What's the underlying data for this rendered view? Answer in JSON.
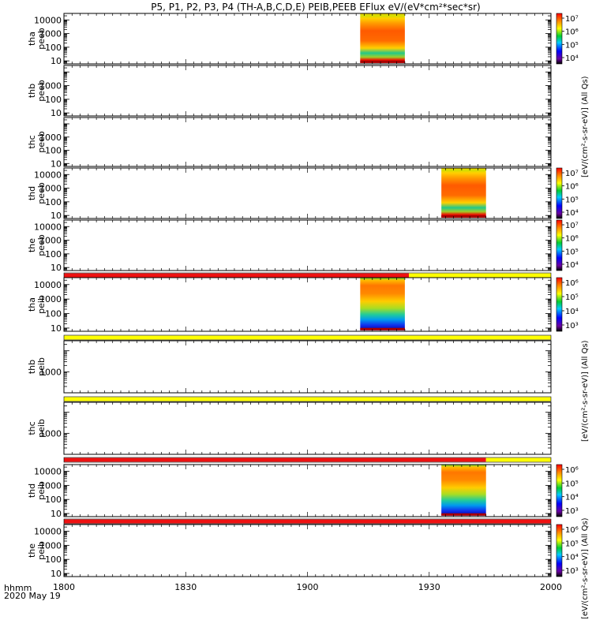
{
  "title": "P5, P1, P2, P3, P4 (TH-A,B,C,D,E) PEIB,PEEB EFlux eV/(eV*cm²*sec*sr)",
  "time_axis": {
    "label_line1": "hhmm",
    "label_line2": "2020 May 19",
    "ticks": [
      "1800",
      "1830",
      "1900",
      "1930",
      "2000"
    ]
  },
  "colorbar_labels": {
    "peeb_top": "[eV/(cm²-s-sr-eV)] (All Qs)",
    "peeb_mid": "[eV/(cm²-s-sr-eV)] (All Qs)",
    "peib": "[eV/(cm²-s-sr-eV)] (All Qs)"
  },
  "colors": {
    "flag_red": "#ee1111",
    "flag_yellow": "#ffff00",
    "flag_black": "#000000"
  },
  "chart_data": {
    "type": "heatmap",
    "x_unit": "time (hhmm UT)",
    "x_range": [
      "1800",
      "2000"
    ],
    "y_scale": "log",
    "panels": [
      {
        "probe": "tha",
        "label": [
          "tha",
          "peeb"
        ],
        "yticks": [
          "10",
          "100",
          "1000",
          "10000"
        ],
        "ylim": [
          6,
          30000
        ],
        "data": [
          {
            "start": "1913",
            "end": "1924",
            "emin": 7,
            "emax": 30000
          }
        ],
        "colorbar": {
          "ticks": [
            "10⁴",
            "10⁵",
            "10⁶",
            "10⁷"
          ]
        }
      },
      {
        "probe": "thb",
        "label": [
          "thb",
          "peeb"
        ],
        "yticks": [
          "10",
          "100",
          "1000"
        ],
        "ylim": [
          6,
          30000
        ],
        "data": []
      },
      {
        "probe": "thc",
        "label": [
          "thc",
          "peeb"
        ],
        "yticks": [
          "10",
          "100",
          "1000"
        ],
        "ylim": [
          6,
          30000
        ],
        "data": []
      },
      {
        "probe": "thd",
        "label": [
          "thd",
          "peeb"
        ],
        "yticks": [
          "10",
          "100",
          "1000",
          "10000"
        ],
        "ylim": [
          6,
          30000
        ],
        "data": [
          {
            "start": "1933",
            "end": "1944",
            "emin": 7,
            "emax": 30000
          }
        ],
        "colorbar": {
          "ticks": [
            "10⁴",
            "10⁵",
            "10⁶",
            "10⁷"
          ]
        }
      },
      {
        "probe": "the",
        "label": [
          "the",
          "peeb"
        ],
        "yticks": [
          "10",
          "100",
          "1000",
          "10000"
        ],
        "ylim": [
          6,
          30000
        ],
        "data": [],
        "colorbar": {
          "ticks": [
            "10⁴",
            "10⁵",
            "10⁶",
            "10⁷"
          ]
        }
      },
      {
        "probe": "tha",
        "label": [
          "tha",
          "peib"
        ],
        "yticks": [
          "10",
          "100",
          "1000",
          "10000"
        ],
        "ylim": [
          6,
          30000
        ],
        "data": [
          {
            "start": "1913",
            "end": "1924",
            "emin": 7,
            "emax": 30000
          }
        ],
        "colorbar": {
          "ticks": [
            "10³",
            "10⁴",
            "10⁵",
            "10⁶"
          ]
        }
      },
      {
        "probe": "thb",
        "label": [
          "thb",
          "peib"
        ],
        "yticks": [
          "1000"
        ],
        "ylim": [
          100,
          30000
        ],
        "data": []
      },
      {
        "probe": "thc",
        "label": [
          "thc",
          "peib"
        ],
        "yticks": [
          "1000"
        ],
        "ylim": [
          100,
          30000
        ],
        "data": []
      },
      {
        "probe": "thd",
        "label": [
          "thd",
          "peib"
        ],
        "yticks": [
          "10",
          "100",
          "1000",
          "10000"
        ],
        "ylim": [
          6,
          30000
        ],
        "data": [
          {
            "start": "1933",
            "end": "1944",
            "emin": 7,
            "emax": 30000
          }
        ],
        "colorbar": {
          "ticks": [
            "10³",
            "10⁴",
            "10⁵",
            "10⁶"
          ]
        }
      },
      {
        "probe": "the",
        "label": [
          "the",
          "peib"
        ],
        "yticks": [
          "10",
          "100",
          "1000",
          "10000"
        ],
        "ylim": [
          6,
          30000
        ],
        "data": [],
        "colorbar": {
          "ticks": [
            "10³",
            "10⁴",
            "10⁵",
            "10⁶"
          ]
        }
      }
    ],
    "flag_bars": [
      {
        "between": "the-peeb / tha-peib",
        "segments": [
          {
            "start": "1800",
            "end": "1925",
            "color": "flag_red"
          },
          {
            "start": "1925",
            "end": "2000",
            "color": "flag_yellow"
          }
        ]
      },
      {
        "between": "tha-peib / thb-peib",
        "segments": [
          {
            "start": "1800",
            "end": "2000",
            "color": "flag_yellow"
          }
        ]
      },
      {
        "between": "thb-peib / thc-peib",
        "segments": [
          {
            "start": "1800",
            "end": "2000",
            "color": "flag_yellow"
          }
        ]
      },
      {
        "between": "thc-peib / thd-peib",
        "segments": [
          {
            "start": "1800",
            "end": "1944",
            "color": "flag_red"
          },
          {
            "start": "1944",
            "end": "2000",
            "color": "flag_yellow"
          }
        ]
      },
      {
        "between": "thd-peib / the-peib",
        "segments": [
          {
            "start": "1800",
            "end": "2000",
            "color": "flag_red"
          }
        ]
      }
    ]
  }
}
